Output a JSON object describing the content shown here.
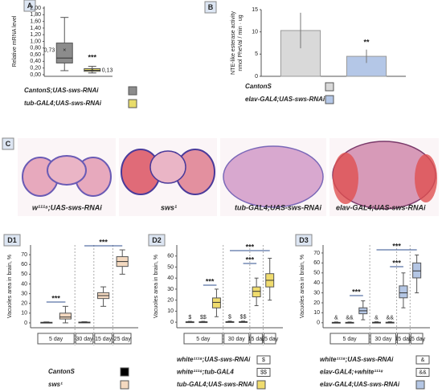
{
  "chart_data": [
    {
      "type": "box",
      "label": "A",
      "ylabel": "Relative mRNA level",
      "ylim": [
        -0.05,
        2.05
      ],
      "yticks": [
        {
          "value": 0,
          "label": "0,00"
        },
        {
          "value": 0.2,
          "label": "0,20"
        },
        {
          "value": 0.4,
          "label": "0,40"
        },
        {
          "value": 0.6,
          "label": "0,60"
        },
        {
          "value": 0.8,
          "label": "0,80"
        },
        {
          "value": 1,
          "label": "1,00"
        },
        {
          "value": 1.2,
          "label": "1,20"
        },
        {
          "value": 1.4,
          "label": "1,40"
        },
        {
          "value": 1.6,
          "label": "1,60"
        },
        {
          "value": 1.8,
          "label": "1,80"
        },
        {
          "value": 2,
          "label": "2,00"
        }
      ],
      "groups": [
        null
      ],
      "series": [
        {
          "name": "CantonS;UAS-sws-RNAi",
          "color": "#8c8c8c",
          "values": [
            {
              "min": 0.12,
              "q1": 0.35,
              "median": 0.5,
              "q3": 0.95,
              "max": 1.72,
              "mean": 0.73,
              "mean_label": "0,73"
            }
          ]
        },
        {
          "name": "tub-GAL4;UAS-sws-RNAi",
          "color": "#e8dc6a",
          "values": [
            {
              "min": 0.05,
              "q1": 0.1,
              "median": 0.13,
              "q3": 0.18,
              "max": 0.25,
              "mean": 0.13,
              "mean_label": "0,13"
            }
          ]
        }
      ],
      "annotations": [
        "***"
      ]
    },
    {
      "type": "bar",
      "label": "B",
      "ylabel": [
        "NTE-like esterase activity",
        "nmol PheVal / min · ug"
      ],
      "ylim": [
        0,
        15
      ],
      "yticks": [
        0,
        5,
        10,
        15
      ],
      "categories": [
        null
      ],
      "series": [
        {
          "name": "CantonS",
          "color": "#d9d9d9",
          "values": [
            10.3
          ],
          "errors": [
            4
          ]
        },
        {
          "name": "elav-GAL4;UAS-sws-RNAi",
          "color": "#b4c7e7",
          "values": [
            4.5
          ],
          "errors": [
            1.5
          ]
        }
      ],
      "annotations": [
        "**"
      ]
    },
    {
      "type": "box",
      "label": "D1",
      "ylabel": "Vacuoles area in brain, %",
      "ylim": [
        -5,
        80
      ],
      "yticks": [
        0,
        10,
        20,
        30,
        40,
        50,
        60,
        70
      ],
      "groups": [
        "5 day",
        "30 day",
        "15 day",
        "25 day"
      ],
      "series": [
        {
          "name": "CantonS",
          "color": "#000000",
          "values": [
            {
              "min": 0,
              "q1": 0,
              "median": 0.3,
              "q3": 0.6,
              "max": 1
            },
            {
              "min": 0,
              "q1": 0.2,
              "median": 0.5,
              "q3": 0.8,
              "max": 1.2
            },
            null,
            null
          ]
        },
        {
          "name": "sws¹",
          "color": "#f4d9c0",
          "values": [
            {
              "min": 0,
              "q1": 4,
              "median": 6,
              "q3": 10,
              "max": 17
            },
            null,
            {
              "min": 17,
              "q1": 25,
              "median": 28,
              "q3": 31,
              "max": 37
            },
            {
              "min": 50,
              "q1": 58,
              "median": 63,
              "q3": 68,
              "max": 75
            }
          ]
        }
      ],
      "annotations": [
        "***",
        "***"
      ]
    },
    {
      "type": "box",
      "label": "D2",
      "ylabel": "Vacuoles area in brain, %",
      "ylim": [
        -5,
        70
      ],
      "yticks": [
        0,
        10,
        20,
        30,
        40,
        50,
        60
      ],
      "groups": [
        "5 day",
        "30 day",
        "15 day",
        "25 day"
      ],
      "series": [
        {
          "name": "white¹¹¹⁸;UAS-sws-RNAi",
          "symbol": "$",
          "color": "#ffffff",
          "values": [
            {
              "min": 0,
              "q1": 0,
              "median": 0.2,
              "q3": 0.4,
              "max": 0.8
            },
            {
              "min": 0,
              "q1": 0,
              "median": 0.3,
              "q3": 0.5,
              "max": 1
            },
            null,
            null
          ]
        },
        {
          "name": "white¹¹¹⁸;tub-GAL4",
          "symbol": "$$",
          "color": "#ffffff",
          "values": [
            {
              "min": 0,
              "q1": 0,
              "median": 0.2,
              "q3": 0.4,
              "max": 0.8
            },
            {
              "min": 0,
              "q1": 0,
              "median": 0.3,
              "q3": 0.5,
              "max": 1
            },
            null,
            null
          ]
        },
        {
          "name": "tub-GAL4;UAS-sws-RNAi",
          "color": "#f0dc6e",
          "values": [
            {
              "min": 5,
              "q1": 13,
              "median": 18,
              "q3": 22,
              "max": 30
            },
            null,
            {
              "min": 15,
              "q1": 23,
              "median": 28,
              "q3": 32,
              "max": 40
            },
            {
              "min": 20,
              "q1": 32,
              "median": 38,
              "q3": 44,
              "max": 58
            }
          ]
        }
      ],
      "annotations": [
        "***",
        "***",
        "***"
      ]
    },
    {
      "type": "box",
      "label": "D3",
      "ylabel": "Vacuoles area in brain, %",
      "ylim": [
        -5,
        78
      ],
      "yticks": [
        0,
        10,
        20,
        30,
        40,
        50,
        60,
        70
      ],
      "groups": [
        "5 day",
        "30 day",
        "15 day",
        "25 day"
      ],
      "series": [
        {
          "name": "white¹¹¹⁸;UAS-sws-RNAi",
          "symbol": "&",
          "color": "#ffffff",
          "values": [
            {
              "min": 0,
              "q1": 0,
              "median": 0.2,
              "q3": 0.4,
              "max": 0.8
            },
            {
              "min": 0,
              "q1": 0,
              "median": 0.3,
              "q3": 0.5,
              "max": 1
            },
            null,
            null
          ]
        },
        {
          "name": "elav-GAL4;+white¹¹¹⁸",
          "symbol": "&&",
          "color": "#ffffff",
          "values": [
            {
              "min": 0,
              "q1": 0,
              "median": 0.2,
              "q3": 0.4,
              "max": 0.8
            },
            {
              "min": 0,
              "q1": 0,
              "median": 0.3,
              "q3": 0.5,
              "max": 1
            },
            null,
            null
          ]
        },
        {
          "name": "elav-GAL4;UAS-sws-RNAi",
          "color": "#b4c6e4",
          "values": [
            {
              "min": 3,
              "q1": 9,
              "median": 12,
              "q3": 15,
              "max": 22
            },
            null,
            {
              "min": 15,
              "q1": 25,
              "median": 30,
              "q3": 37,
              "max": 50
            },
            {
              "min": 30,
              "q1": 45,
              "median": 52,
              "q3": 60,
              "max": 68
            }
          ]
        }
      ],
      "annotations": [
        "***",
        "***",
        "***"
      ]
    }
  ],
  "histology": {
    "label": "C",
    "captions": [
      "w¹¹¹⁸;UAS-sws-RNAi",
      "sws¹",
      "tub-GAL4;UAS-sws-RNAi",
      "elav-GAL4;UAS-sws-RNAi"
    ]
  }
}
